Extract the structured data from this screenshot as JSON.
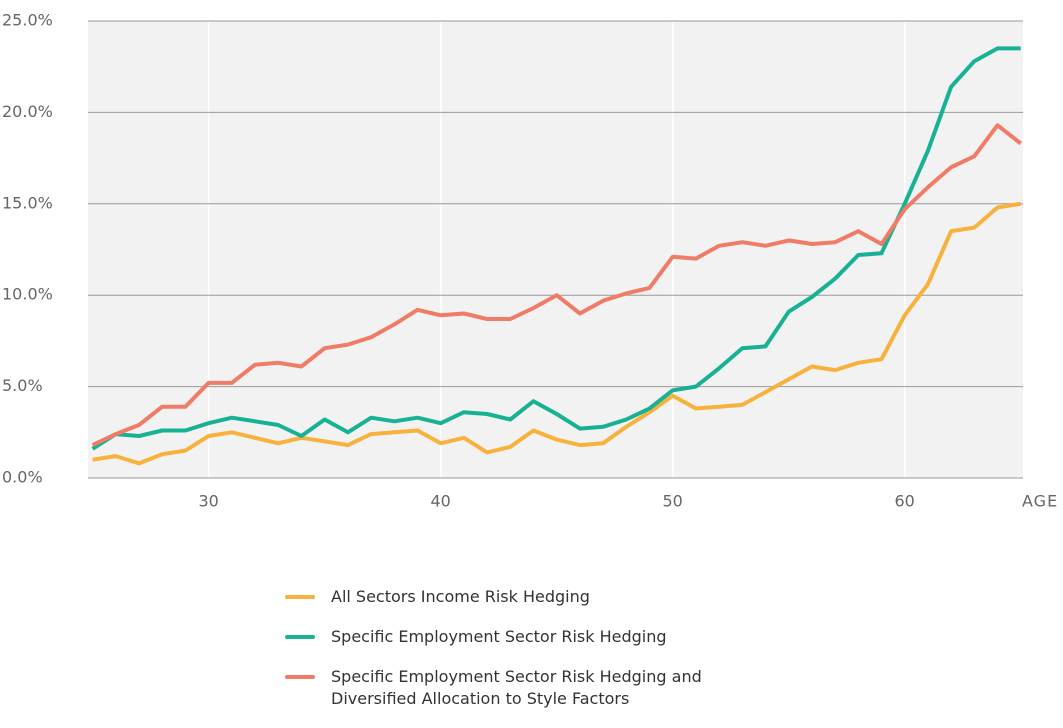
{
  "chart_data": {
    "type": "line",
    "x": [
      25,
      26,
      27,
      28,
      29,
      30,
      31,
      32,
      33,
      34,
      35,
      36,
      37,
      38,
      39,
      40,
      41,
      42,
      43,
      44,
      45,
      46,
      47,
      48,
      49,
      50,
      51,
      52,
      53,
      54,
      55,
      56,
      57,
      58,
      59,
      60,
      61,
      62,
      63,
      64,
      65
    ],
    "x_label": "AGE",
    "series": [
      {
        "name": "All Sectors Income Risk Hedging",
        "color": "#f7b13c",
        "values": [
          1.0,
          1.2,
          0.8,
          1.3,
          1.5,
          2.3,
          2.5,
          2.2,
          1.9,
          2.2,
          2.0,
          1.8,
          2.4,
          2.5,
          2.6,
          1.9,
          2.2,
          1.4,
          1.7,
          2.6,
          2.1,
          1.8,
          1.9,
          2.8,
          3.6,
          4.5,
          3.8,
          3.9,
          4.0,
          4.7,
          5.4,
          6.1,
          5.9,
          6.3,
          6.5,
          8.9,
          10.6,
          13.5,
          13.7,
          14.8,
          15.0
        ]
      },
      {
        "name": "Specific Employment Sector Risk Hedging",
        "color": "#17b193",
        "values": [
          1.6,
          2.4,
          2.3,
          2.6,
          2.6,
          3.0,
          3.3,
          3.1,
          2.9,
          2.3,
          3.2,
          2.5,
          3.3,
          3.1,
          3.3,
          3.0,
          3.6,
          3.5,
          3.2,
          4.2,
          3.5,
          2.7,
          2.8,
          3.2,
          3.8,
          4.8,
          5.0,
          6.0,
          7.1,
          7.2,
          9.1,
          9.9,
          10.9,
          12.2,
          12.3,
          15.0,
          17.9,
          21.4,
          22.8,
          23.5,
          23.5
        ]
      },
      {
        "name": "Specific Employment Sector Risk Hedging and Diversified Allocation to Style Factors",
        "color": "#f07b67",
        "values": [
          1.8,
          2.4,
          2.9,
          3.9,
          3.9,
          5.2,
          5.2,
          6.2,
          6.3,
          6.1,
          7.1,
          7.3,
          7.7,
          8.4,
          9.2,
          8.9,
          9.0,
          8.7,
          8.7,
          9.3,
          10.0,
          9.0,
          9.7,
          10.1,
          10.4,
          12.1,
          12.0,
          12.7,
          12.9,
          12.7,
          13.0,
          12.8,
          12.9,
          13.5,
          12.8,
          14.7,
          15.9,
          17.0,
          17.6,
          19.3,
          18.3
        ]
      }
    ],
    "xlim": [
      24.8,
      65.1
    ],
    "xticks": [
      30,
      40,
      50,
      60
    ],
    "ylim": [
      0,
      25
    ],
    "yticks": [
      {
        "value": 0,
        "label": "0.0%"
      },
      {
        "value": 5,
        "label": "5.0%"
      },
      {
        "value": 10,
        "label": "10.0%"
      },
      {
        "value": 15,
        "label": "15.0%"
      },
      {
        "value": 20,
        "label": "20.0%"
      },
      {
        "value": 25,
        "label": "25.0%"
      }
    ],
    "grid": true,
    "legend": "bottom"
  }
}
